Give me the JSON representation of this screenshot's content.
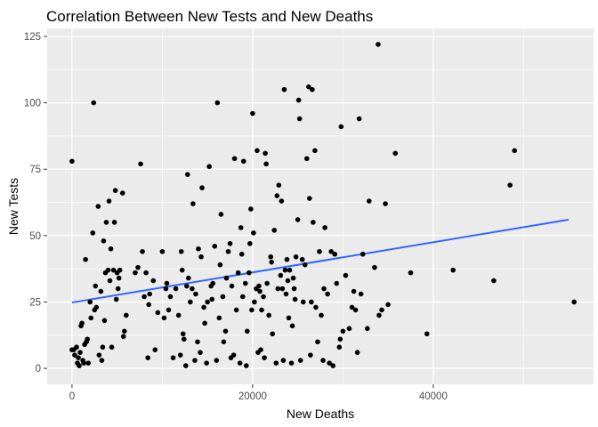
{
  "chart_data": {
    "type": "scatter",
    "title": "Correlation Between New Tests and New Deaths",
    "xlabel": "New Deaths",
    "ylabel": "New Tests",
    "xlim": [
      -2750,
      57750
    ],
    "ylim": [
      -6,
      128
    ],
    "x_ticks": [
      0,
      20000,
      40000
    ],
    "x_tick_labels": [
      "0",
      "20000",
      "40000"
    ],
    "y_ticks": [
      0,
      25,
      50,
      75,
      100,
      125
    ],
    "y_tick_labels": [
      "0",
      "25",
      "50",
      "75",
      "100",
      "125"
    ],
    "grid": true,
    "legend": "none",
    "colors": {
      "panel": "#ebebeb",
      "grid": "#ffffff",
      "points": "#000000",
      "trend": "#3366ff"
    },
    "points": [
      [
        0,
        78
      ],
      [
        0,
        7
      ],
      [
        200,
        7
      ],
      [
        300,
        5
      ],
      [
        500,
        8
      ],
      [
        600,
        2
      ],
      [
        700,
        4
      ],
      [
        800,
        1
      ],
      [
        900,
        6
      ],
      [
        1000,
        16
      ],
      [
        1100,
        17
      ],
      [
        1200,
        3
      ],
      [
        1300,
        2
      ],
      [
        1400,
        9
      ],
      [
        1500,
        41
      ],
      [
        1600,
        10
      ],
      [
        1700,
        11
      ],
      [
        1800,
        2
      ],
      [
        2000,
        25
      ],
      [
        2100,
        19
      ],
      [
        2300,
        51
      ],
      [
        2400,
        100
      ],
      [
        2500,
        22
      ],
      [
        2600,
        31
      ],
      [
        2700,
        23
      ],
      [
        2900,
        61
      ],
      [
        3000,
        5
      ],
      [
        3200,
        29
      ],
      [
        3300,
        3
      ],
      [
        3400,
        8
      ],
      [
        3500,
        48
      ],
      [
        3600,
        18
      ],
      [
        3700,
        36
      ],
      [
        3800,
        55
      ],
      [
        4000,
        37
      ],
      [
        4100,
        63
      ],
      [
        4200,
        33
      ],
      [
        4300,
        45
      ],
      [
        4400,
        8
      ],
      [
        4600,
        37
      ],
      [
        4700,
        55
      ],
      [
        4800,
        67
      ],
      [
        4900,
        26
      ],
      [
        5000,
        36
      ],
      [
        5100,
        30
      ],
      [
        5200,
        34
      ],
      [
        5300,
        37
      ],
      [
        5600,
        66
      ],
      [
        5700,
        12
      ],
      [
        5800,
        14
      ],
      [
        6000,
        20
      ],
      [
        7000,
        36
      ],
      [
        7300,
        38
      ],
      [
        7600,
        77
      ],
      [
        7800,
        44
      ],
      [
        8000,
        27
      ],
      [
        8200,
        36
      ],
      [
        8400,
        4
      ],
      [
        8500,
        24
      ],
      [
        8600,
        28
      ],
      [
        9000,
        33
      ],
      [
        9200,
        7
      ],
      [
        9500,
        21
      ],
      [
        10000,
        44
      ],
      [
        10200,
        19
      ],
      [
        10400,
        30
      ],
      [
        10500,
        32
      ],
      [
        10700,
        22
      ],
      [
        10900,
        27
      ],
      [
        11200,
        4
      ],
      [
        11500,
        30
      ],
      [
        11800,
        20
      ],
      [
        12000,
        5
      ],
      [
        12100,
        44
      ],
      [
        12200,
        37
      ],
      [
        12300,
        13
      ],
      [
        12400,
        11
      ],
      [
        12600,
        1
      ],
      [
        12700,
        31
      ],
      [
        12800,
        73
      ],
      [
        12900,
        34
      ],
      [
        13100,
        25
      ],
      [
        13300,
        30
      ],
      [
        13400,
        62
      ],
      [
        13600,
        3
      ],
      [
        13700,
        28
      ],
      [
        13900,
        10
      ],
      [
        14000,
        45
      ],
      [
        14200,
        6
      ],
      [
        14300,
        42
      ],
      [
        14400,
        68
      ],
      [
        14600,
        23
      ],
      [
        14700,
        17
      ],
      [
        14900,
        2
      ],
      [
        15000,
        25
      ],
      [
        15200,
        76
      ],
      [
        15400,
        31
      ],
      [
        15500,
        26
      ],
      [
        15600,
        32
      ],
      [
        15800,
        46
      ],
      [
        16000,
        3
      ],
      [
        16100,
        100
      ],
      [
        16300,
        19
      ],
      [
        16400,
        39
      ],
      [
        16500,
        58
      ],
      [
        16700,
        27
      ],
      [
        16800,
        10
      ],
      [
        17000,
        14
      ],
      [
        17100,
        34
      ],
      [
        17300,
        44
      ],
      [
        17500,
        47
      ],
      [
        17600,
        4
      ],
      [
        17700,
        31
      ],
      [
        17900,
        5
      ],
      [
        18000,
        79
      ],
      [
        18200,
        22
      ],
      [
        18400,
        36
      ],
      [
        18600,
        2
      ],
      [
        18700,
        53
      ],
      [
        18800,
        43
      ],
      [
        18900,
        27
      ],
      [
        19000,
        78
      ],
      [
        19200,
        32
      ],
      [
        19300,
        1
      ],
      [
        19400,
        14
      ],
      [
        19600,
        36
      ],
      [
        19700,
        47
      ],
      [
        19800,
        60
      ],
      [
        19900,
        22
      ],
      [
        20000,
        96
      ],
      [
        20100,
        51
      ],
      [
        20200,
        25
      ],
      [
        20400,
        30
      ],
      [
        20500,
        82
      ],
      [
        20600,
        6
      ],
      [
        20700,
        31
      ],
      [
        20800,
        29
      ],
      [
        20900,
        7
      ],
      [
        21000,
        22
      ],
      [
        21200,
        27
      ],
      [
        21300,
        4
      ],
      [
        21400,
        81
      ],
      [
        21500,
        77
      ],
      [
        21600,
        32
      ],
      [
        21800,
        20
      ],
      [
        22000,
        42
      ],
      [
        22100,
        40
      ],
      [
        22200,
        13
      ],
      [
        22400,
        52
      ],
      [
        22600,
        2
      ],
      [
        22700,
        65
      ],
      [
        22800,
        30
      ],
      [
        22900,
        69
      ],
      [
        23100,
        35
      ],
      [
        23200,
        63
      ],
      [
        23300,
        30
      ],
      [
        23400,
        3
      ],
      [
        23500,
        105
      ],
      [
        23600,
        37
      ],
      [
        23700,
        28
      ],
      [
        23800,
        41
      ],
      [
        23900,
        33
      ],
      [
        24000,
        19
      ],
      [
        24100,
        37
      ],
      [
        24300,
        2
      ],
      [
        24400,
        16
      ],
      [
        24500,
        34
      ],
      [
        24600,
        30
      ],
      [
        24700,
        26
      ],
      [
        24800,
        42
      ],
      [
        25000,
        56
      ],
      [
        25100,
        101
      ],
      [
        25200,
        94
      ],
      [
        25300,
        3
      ],
      [
        25500,
        41
      ],
      [
        25600,
        25
      ],
      [
        25800,
        39
      ],
      [
        26000,
        79
      ],
      [
        26200,
        106
      ],
      [
        26300,
        64
      ],
      [
        26400,
        5
      ],
      [
        26500,
        25
      ],
      [
        26600,
        105
      ],
      [
        26700,
        55
      ],
      [
        26900,
        82
      ],
      [
        27000,
        23
      ],
      [
        27200,
        10
      ],
      [
        27400,
        44
      ],
      [
        27600,
        20
      ],
      [
        27800,
        3
      ],
      [
        27900,
        30
      ],
      [
        28000,
        53
      ],
      [
        28300,
        28
      ],
      [
        28500,
        2
      ],
      [
        28700,
        44
      ],
      [
        28900,
        1
      ],
      [
        29100,
        43
      ],
      [
        29300,
        32
      ],
      [
        29600,
        8
      ],
      [
        29700,
        11
      ],
      [
        29800,
        91
      ],
      [
        30000,
        14
      ],
      [
        30300,
        35
      ],
      [
        30700,
        15
      ],
      [
        31000,
        23
      ],
      [
        31200,
        29
      ],
      [
        31400,
        22
      ],
      [
        31600,
        6
      ],
      [
        31800,
        94
      ],
      [
        32000,
        28
      ],
      [
        32200,
        43
      ],
      [
        32700,
        15
      ],
      [
        32900,
        63
      ],
      [
        33500,
        38
      ],
      [
        33900,
        122
      ],
      [
        34000,
        20
      ],
      [
        34300,
        22
      ],
      [
        34700,
        62
      ],
      [
        35000,
        24
      ],
      [
        35800,
        81
      ],
      [
        37500,
        36
      ],
      [
        39300,
        13
      ],
      [
        42200,
        37
      ],
      [
        46700,
        33
      ],
      [
        48500,
        69
      ],
      [
        49000,
        82
      ],
      [
        55600,
        25
      ]
    ],
    "trend_line": {
      "x": [
        0,
        55000
      ],
      "y": [
        24.8,
        56
      ]
    }
  }
}
